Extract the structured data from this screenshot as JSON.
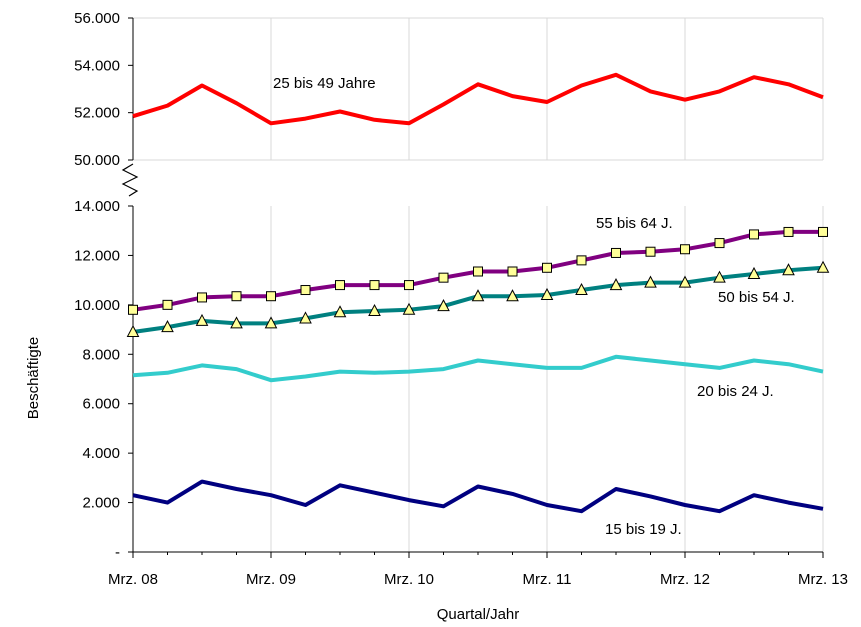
{
  "chart_data": {
    "type": "line",
    "xlabel": "Quartal/Jahr",
    "ylabel": "Beschäftigte",
    "x_tick_labels": [
      "Mrz. 08",
      "Mrz. 09",
      "Mrz. 10",
      "Mrz. 11",
      "Mrz. 12",
      "Mrz. 13"
    ],
    "upper_panel": {
      "ylim": [
        50000,
        56000
      ],
      "y_tick_labels": [
        "50.000",
        "52.000",
        "54.000",
        "56.000"
      ],
      "y_tick_values": [
        50000,
        52000,
        54000,
        56000
      ]
    },
    "lower_panel": {
      "ylim": [
        0,
        14000
      ],
      "y_tick_labels": [
        "-",
        "2.000",
        "4.000",
        "6.000",
        "8.000",
        "10.000",
        "12.000",
        "14.000"
      ],
      "y_tick_values": [
        0,
        2000,
        4000,
        6000,
        8000,
        10000,
        12000,
        14000
      ]
    },
    "grid": "vertical",
    "series": [
      {
        "name": "25 bis 49 Jahre",
        "panel": "upper",
        "color": "#ff0000",
        "marker": "none",
        "values": [
          51850,
          52300,
          53150,
          52400,
          51550,
          51750,
          52050,
          51700,
          51550,
          52350,
          53200,
          52700,
          52450,
          53150,
          53600,
          52900,
          52550,
          52900,
          53500,
          53200,
          52650
        ]
      },
      {
        "name": "55 bis 64 J.",
        "panel": "lower",
        "color": "#800080",
        "marker": "square",
        "marker_fill": "#ffff99",
        "values": [
          9800,
          10000,
          10300,
          10350,
          10350,
          10600,
          10800,
          10800,
          10800,
          11100,
          11350,
          11350,
          11500,
          11800,
          12100,
          12150,
          12250,
          12500,
          12850,
          12950,
          12950
        ]
      },
      {
        "name": "50 bis 54 J.",
        "panel": "lower",
        "color": "#008080",
        "marker": "triangle",
        "marker_fill": "#ffff99",
        "values": [
          8900,
          9100,
          9350,
          9250,
          9250,
          9450,
          9700,
          9750,
          9800,
          9950,
          10350,
          10350,
          10400,
          10600,
          10800,
          10900,
          10900,
          11100,
          11250,
          11400,
          11500
        ]
      },
      {
        "name": "20 bis 24 J.",
        "panel": "lower",
        "color": "#33cccc",
        "marker": "none",
        "values": [
          7150,
          7250,
          7550,
          7400,
          6950,
          7100,
          7300,
          7250,
          7300,
          7400,
          7750,
          7600,
          7450,
          7450,
          7900,
          7750,
          7600,
          7450,
          7750,
          7600,
          7300
        ]
      },
      {
        "name": "15 bis 19 J.",
        "panel": "lower",
        "color": "#000080",
        "marker": "none",
        "values": [
          2300,
          2000,
          2850,
          2550,
          2300,
          1900,
          2700,
          2400,
          2100,
          1850,
          2650,
          2350,
          1900,
          1650,
          2550,
          2250,
          1900,
          1650,
          2300,
          2000,
          1750
        ]
      }
    ]
  }
}
